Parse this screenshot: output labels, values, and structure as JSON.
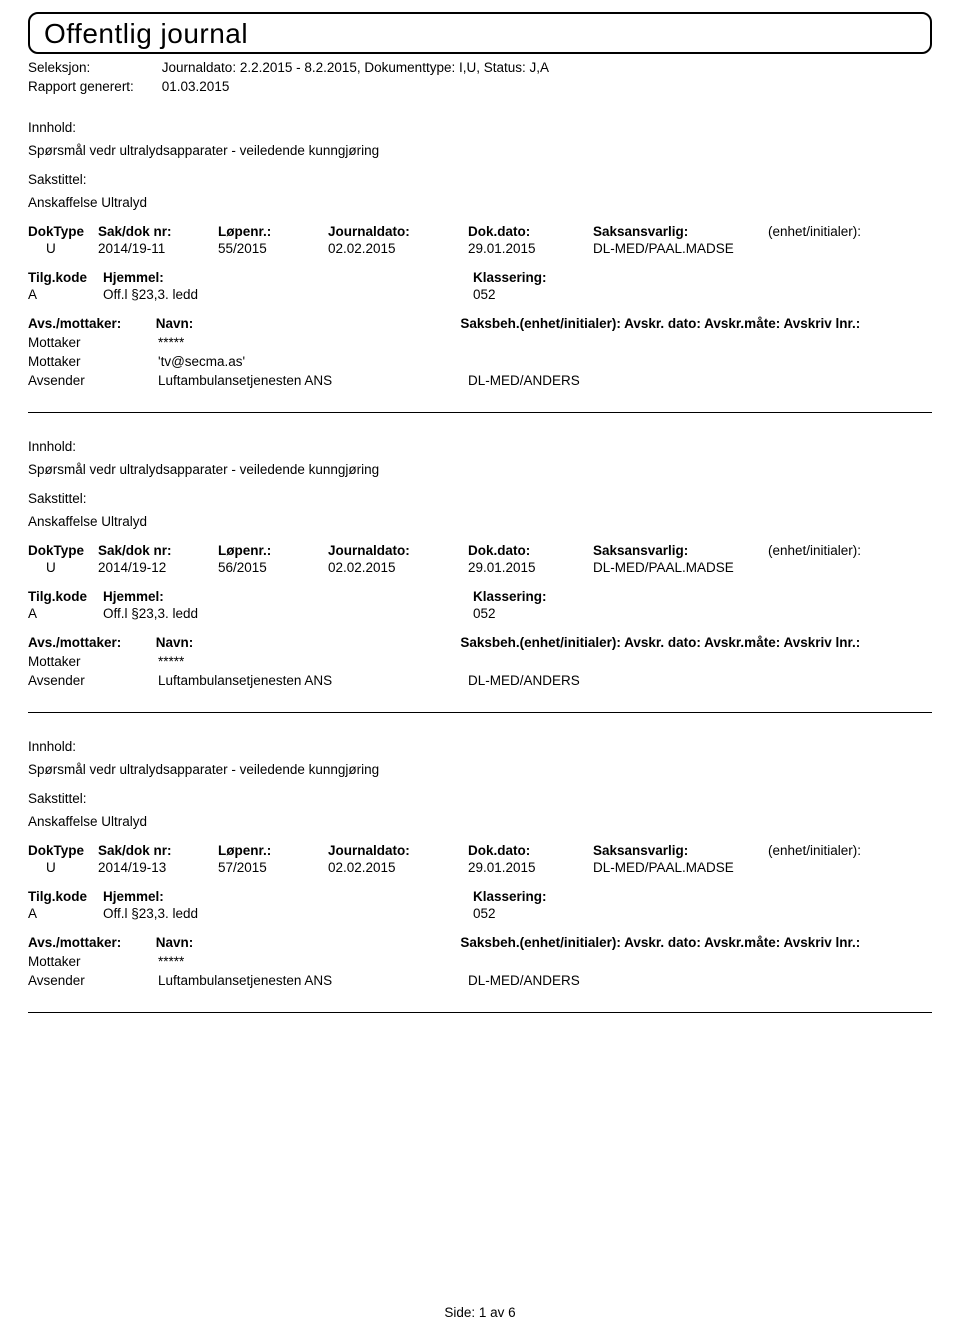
{
  "title": "Offentlig journal",
  "header": {
    "seleksjon_label": "Seleksjon:",
    "seleksjon_value": "Journaldato: 2.2.2015 - 8.2.2015, Dokumenttype: I,U, Status: J,A",
    "rapport_label": "Rapport generert:",
    "rapport_value": "01.03.2015"
  },
  "labels": {
    "innhold": "Innhold:",
    "sakstittel": "Sakstittel:",
    "doktype": "DokType",
    "sakdok": "Sak/dok nr:",
    "lopenr": "Løpenr.:",
    "journaldato": "Journaldato:",
    "dokdato": "Dok.dato:",
    "saksansvarlig": "Saksansvarlig:",
    "enhet_initial": "(enhet/initialer):",
    "tilgkode": "Tilg.kode",
    "hjemmel": "Hjemmel:",
    "klassering": "Klassering:",
    "avs_mottaker": "Avs./mottaker:",
    "navn": "Navn:",
    "saksbeh_line": "Saksbeh.(enhet/initialer): Avskr. dato: Avskr.måte: Avskriv lnr.:",
    "mottaker": "Mottaker",
    "avsender": "Avsender"
  },
  "entries": [
    {
      "innhold": "Spørsmål vedr ultralydsapparater - veiledende kunngjøring",
      "sakstittel": "Anskaffelse Ultralyd",
      "doktype": "U",
      "sakdok": "2014/19-11",
      "lopenr": "55/2015",
      "journaldato": "02.02.2015",
      "dokdato": "29.01.2015",
      "saksansvarlig": "DL-MED/PAAL.MADSE",
      "tilgkode": "A",
      "hjemmel": "Off.l §23,3. ledd",
      "klassering": "052",
      "parties": [
        {
          "role": "Mottaker",
          "name": "*****",
          "extra": ""
        },
        {
          "role": "Mottaker",
          "name": "'tv@secma.as'",
          "extra": ""
        },
        {
          "role": "Avsender",
          "name": "Luftambulansetjenesten ANS",
          "extra": "DL-MED/ANDERS"
        }
      ]
    },
    {
      "innhold": "Spørsmål vedr ultralydsapparater - veiledende kunngjøring",
      "sakstittel": "Anskaffelse Ultralyd",
      "doktype": "U",
      "sakdok": "2014/19-12",
      "lopenr": "56/2015",
      "journaldato": "02.02.2015",
      "dokdato": "29.01.2015",
      "saksansvarlig": "DL-MED/PAAL.MADSE",
      "tilgkode": "A",
      "hjemmel": "Off.l §23,3. ledd",
      "klassering": "052",
      "parties": [
        {
          "role": "Mottaker",
          "name": "*****",
          "extra": ""
        },
        {
          "role": "Avsender",
          "name": "Luftambulansetjenesten ANS",
          "extra": "DL-MED/ANDERS"
        }
      ]
    },
    {
      "innhold": "Spørsmål vedr ultralydsapparater - veiledende kunngjøring",
      "sakstittel": "Anskaffelse Ultralyd",
      "doktype": "U",
      "sakdok": "2014/19-13",
      "lopenr": "57/2015",
      "journaldato": "02.02.2015",
      "dokdato": "29.01.2015",
      "saksansvarlig": "DL-MED/PAAL.MADSE",
      "tilgkode": "A",
      "hjemmel": "Off.l §23,3. ledd",
      "klassering": "052",
      "parties": [
        {
          "role": "Mottaker",
          "name": "*****",
          "extra": ""
        },
        {
          "role": "Avsender",
          "name": "Luftambulansetjenesten ANS",
          "extra": "DL-MED/ANDERS"
        }
      ]
    }
  ],
  "footer": {
    "side_label": "Side:",
    "page_current": "1",
    "page_sep": "av",
    "page_total": "6"
  }
}
